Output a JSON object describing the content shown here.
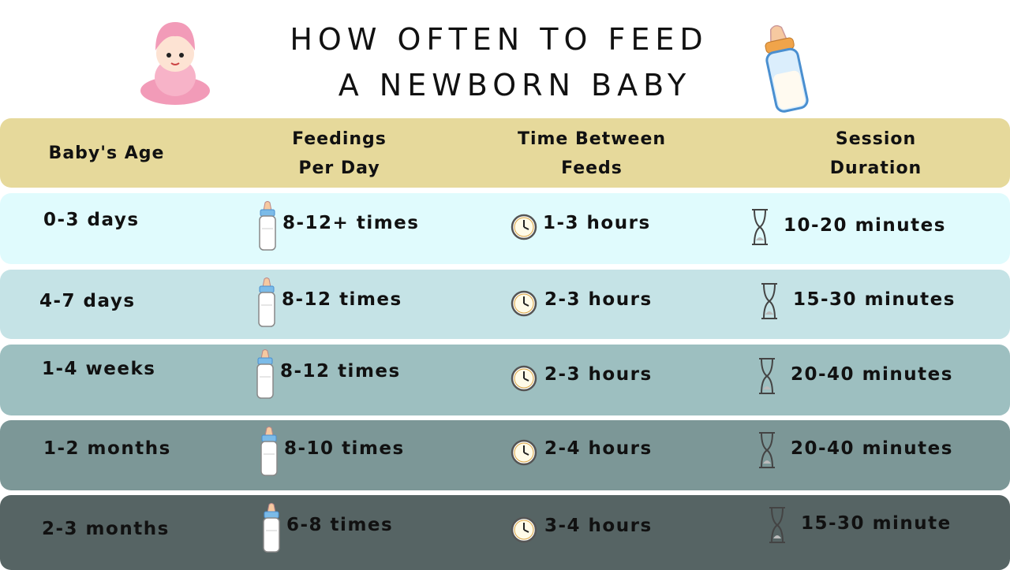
{
  "title": [
    "HOW OFTEN TO FEED",
    "A NEWBORN BABY"
  ],
  "table": {
    "headers": [
      [
        "Baby's Age"
      ],
      [
        "Feedings",
        "Per Day"
      ],
      [
        "Time Between",
        "Feeds"
      ],
      [
        "Session",
        "Duration"
      ]
    ],
    "rows": [
      [
        "0-3 days",
        "8-12+ times",
        "1-3 hours",
        "10-20 minutes"
      ],
      [
        "4-7 days",
        "8-12 times",
        "2-3 hours",
        "15-30 minutes"
      ],
      [
        "1-4 weeks",
        "8-12 times",
        "2-3 hours",
        "20-40 minutes"
      ],
      [
        "1-2 months",
        "8-10 times",
        "2-4 hours",
        "20-40 minutes"
      ],
      [
        "2-3 months",
        "6-8 times",
        "3-4 hours",
        "15-30 minute"
      ]
    ]
  }
}
